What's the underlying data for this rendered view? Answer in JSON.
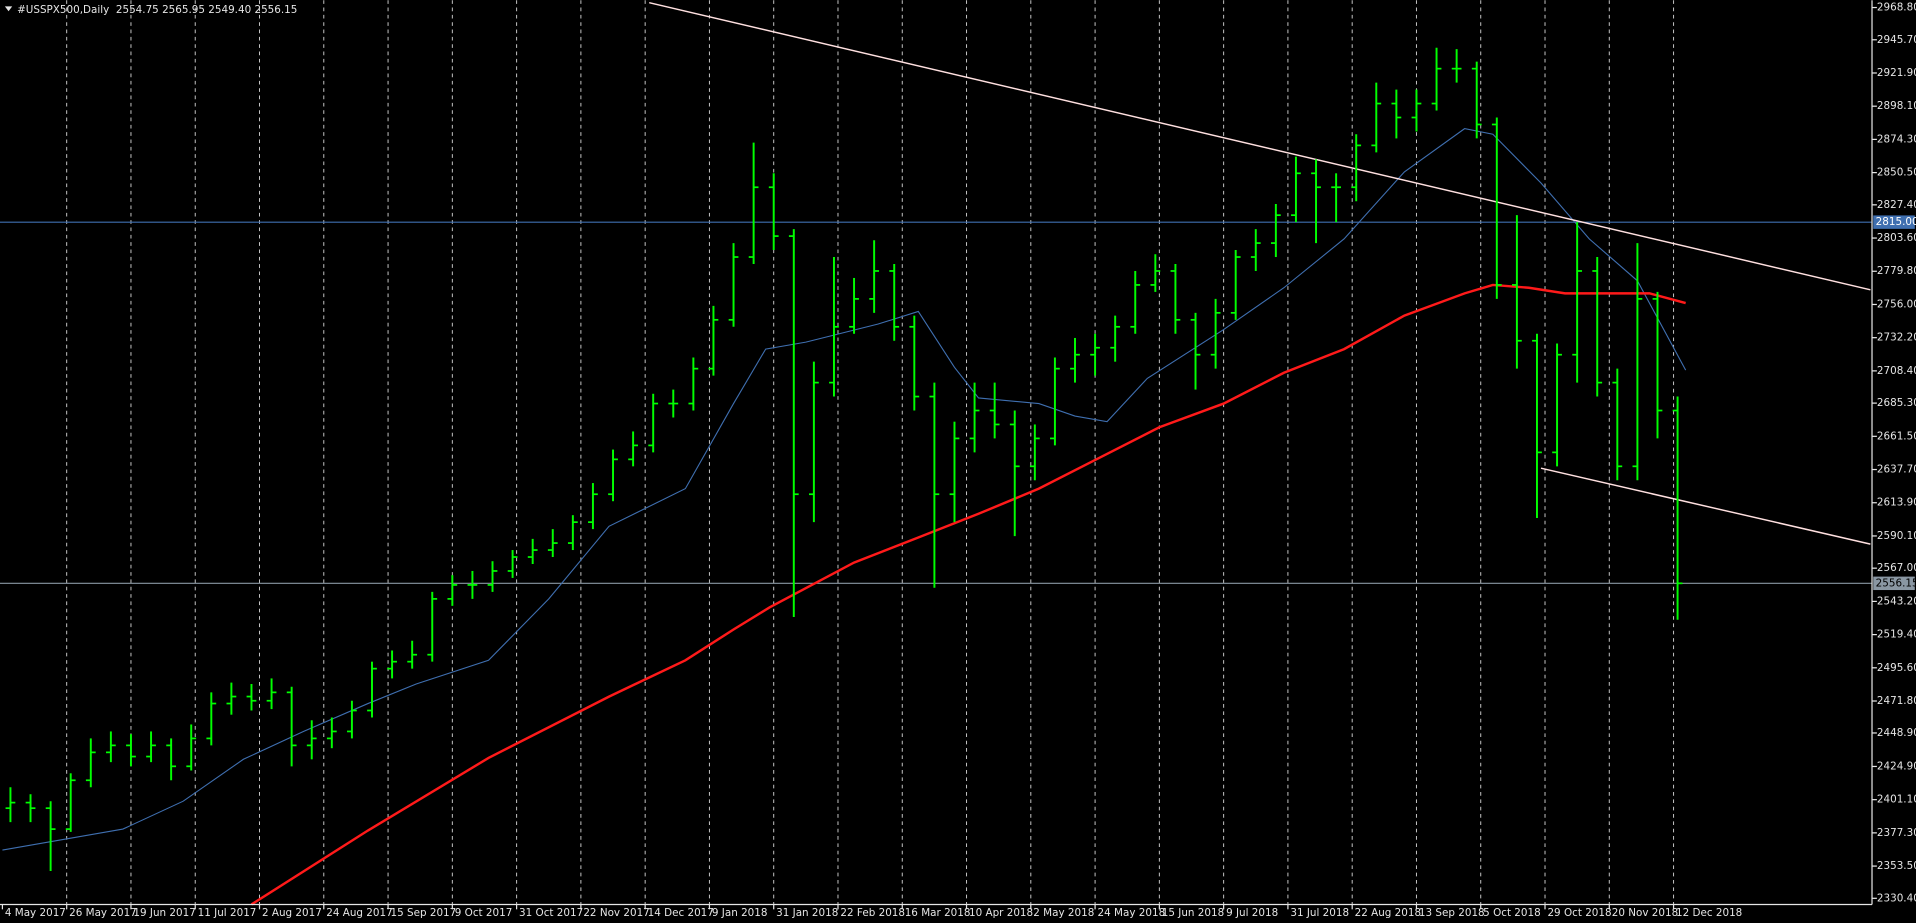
{
  "chart_data": {
    "type": "ohlc",
    "title": "#USSPX500,Daily  2554.75 2565.95 2549.40 2556.15",
    "color": "#00ff00",
    "x": [
      2,
      7,
      12,
      17,
      22,
      27,
      32,
      37,
      42,
      47,
      52,
      57,
      62,
      67,
      72,
      77,
      82,
      87,
      92,
      97,
      102,
      107,
      112,
      117,
      122,
      127,
      132,
      137,
      142,
      147,
      152,
      157,
      162,
      167,
      172,
      177,
      182,
      187,
      192,
      197,
      202,
      207,
      212,
      217,
      222,
      227,
      232,
      237,
      242,
      247,
      252,
      257,
      262,
      267,
      272,
      277,
      282,
      287,
      292,
      297,
      302,
      307,
      312,
      317,
      322,
      327,
      332,
      337,
      342,
      347,
      352,
      357,
      362,
      367,
      372,
      377,
      382,
      387,
      392,
      397,
      402,
      407,
      412,
      417
    ],
    "open": [
      2395,
      2399,
      2395,
      2380,
      2415,
      2435,
      2440,
      2432,
      2440,
      2425,
      2445,
      2470,
      2475,
      2472,
      2478,
      2440,
      2445,
      2450,
      2465,
      2495,
      2500,
      2505,
      2545,
      2555,
      2555,
      2565,
      2575,
      2580,
      2585,
      2600,
      2620,
      2645,
      2655,
      2685,
      2685,
      2710,
      2745,
      2790,
      2840,
      2805,
      2620,
      2700,
      2740,
      2760,
      2780,
      2740,
      2690,
      2620,
      2660,
      2680,
      2670,
      2640,
      2660,
      2710,
      2720,
      2725,
      2740,
      2770,
      2780,
      2745,
      2720,
      2750,
      2790,
      2800,
      2820,
      2850,
      2840,
      2840,
      2870,
      2900,
      2890,
      2900,
      2925,
      2925,
      2885,
      2770,
      2730,
      2650,
      2720,
      2780,
      2700,
      2640,
      2760,
      2680
    ],
    "high": [
      2410,
      2405,
      2400,
      2420,
      2445,
      2450,
      2448,
      2450,
      2445,
      2455,
      2478,
      2485,
      2484,
      2488,
      2482,
      2458,
      2460,
      2472,
      2500,
      2508,
      2515,
      2550,
      2562,
      2565,
      2572,
      2580,
      2588,
      2595,
      2605,
      2628,
      2652,
      2665,
      2692,
      2695,
      2718,
      2755,
      2800,
      2872,
      2850,
      2810,
      2715,
      2790,
      2775,
      2802,
      2785,
      2748,
      2700,
      2672,
      2700,
      2700,
      2680,
      2670,
      2718,
      2732,
      2735,
      2748,
      2780,
      2792,
      2785,
      2750,
      2760,
      2795,
      2810,
      2828,
      2862,
      2860,
      2850,
      2878,
      2915,
      2910,
      2910,
      2940,
      2939,
      2930,
      2890,
      2820,
      2735,
      2728,
      2815,
      2790,
      2710,
      2800,
      2765,
      2690
    ],
    "low": [
      2385,
      2385,
      2350,
      2378,
      2410,
      2428,
      2425,
      2428,
      2415,
      2422,
      2440,
      2462,
      2465,
      2466,
      2425,
      2430,
      2438,
      2445,
      2460,
      2488,
      2495,
      2500,
      2540,
      2545,
      2550,
      2560,
      2570,
      2575,
      2580,
      2595,
      2615,
      2640,
      2650,
      2675,
      2680,
      2705,
      2740,
      2785,
      2795,
      2532,
      2600,
      2690,
      2735,
      2750,
      2730,
      2680,
      2553,
      2600,
      2650,
      2660,
      2590,
      2630,
      2655,
      2700,
      2705,
      2715,
      2735,
      2765,
      2735,
      2695,
      2710,
      2745,
      2780,
      2790,
      2815,
      2800,
      2815,
      2830,
      2865,
      2875,
      2880,
      2895,
      2915,
      2875,
      2760,
      2710,
      2603,
      2640,
      2700,
      2690,
      2630,
      2630,
      2660,
      2530
    ],
    "close": [
      2399,
      2395,
      2380,
      2415,
      2435,
      2440,
      2432,
      2440,
      2425,
      2445,
      2470,
      2475,
      2472,
      2478,
      2440,
      2445,
      2450,
      2465,
      2495,
      2500,
      2505,
      2545,
      2555,
      2555,
      2565,
      2575,
      2580,
      2585,
      2600,
      2620,
      2645,
      2655,
      2685,
      2685,
      2710,
      2745,
      2790,
      2840,
      2805,
      2620,
      2700,
      2740,
      2760,
      2780,
      2740,
      2690,
      2620,
      2660,
      2680,
      2670,
      2640,
      2660,
      2710,
      2720,
      2725,
      2740,
      2770,
      2780,
      2745,
      2720,
      2750,
      2790,
      2800,
      2820,
      2850,
      2840,
      2840,
      2870,
      2900,
      2890,
      2900,
      2925,
      2925,
      2885,
      2770,
      2730,
      2650,
      2720,
      2780,
      2700,
      2640,
      2760,
      2680,
      2556.15
    ],
    "overlays": [
      {
        "color": "#3f6fb0",
        "x": [
          0,
          30,
          45,
          60,
          75,
          91,
          103,
          121,
          136,
          151,
          170,
          182,
          190,
          200,
          218,
          228,
          237,
          243,
          258,
          267,
          275,
          285,
          304,
          319,
          334,
          349,
          364,
          371,
          383,
          395,
          407,
          419
        ],
        "values": [
          2365,
          2380,
          2400,
          2430,
          2450,
          2470,
          2484,
          2501,
          2545,
          2597,
          2624,
          2685,
          2724,
          2729,
          2742,
          2751,
          2711,
          2689,
          2685,
          2676,
          2672,
          2703,
          2738,
          2768,
          2803,
          2851,
          2882,
          2878,
          2843,
          2803,
          2773,
          2709
        ]
      },
      {
        "color": "#ff1a1a",
        "x": [
          62,
          91,
          121,
          151,
          170,
          182,
          191,
          212,
          228,
          243,
          258,
          273,
          288,
          304,
          319,
          334,
          349,
          364,
          371,
          380,
          389,
          401,
          410,
          419
        ],
        "values": [
          2326,
          2379,
          2431,
          2475,
          2501,
          2523,
          2539,
          2571,
          2589,
          2606,
          2624,
          2646,
          2668,
          2685,
          2707,
          2724,
          2748,
          2764,
          2770,
          2768,
          2764,
          2764,
          2764,
          2757
        ]
      }
    ],
    "trendlines": [
      {
        "color": "#ffe0e0",
        "x": [
          161,
          465
        ],
        "values": [
          2972.3,
          2766.5
        ]
      },
      {
        "color": "#ffe0e0",
        "x": [
          383,
          465
        ],
        "values": [
          2638.6,
          2584.3
        ]
      }
    ],
    "hlines": [
      {
        "value": 2815,
        "label": "2815.00",
        "color": "#3f6fb0"
      },
      {
        "value": 2556.15,
        "color": "#8a97a3"
      }
    ],
    "xlim": [
      -0.6,
      465.4
    ],
    "ylim": [
      2326.0,
      2974.05
    ],
    "grid": "vertical",
    "xticks": [
      {
        "value": 0,
        "label": "4 May 2017"
      },
      {
        "value": 16,
        "label": "26 May 2017"
      },
      {
        "value": 32,
        "label": "19 Jun 2017"
      },
      {
        "value": 48,
        "label": "11 Jul 2017"
      },
      {
        "value": 64,
        "label": "2 Aug 2017"
      },
      {
        "value": 80,
        "label": "24 Aug 2017"
      },
      {
        "value": 96,
        "label": "15 Sep 2017"
      },
      {
        "value": 112,
        "label": "9 Oct 2017"
      },
      {
        "value": 128,
        "label": "31 Oct 2017"
      },
      {
        "value": 144,
        "label": "22 Nov 2017"
      },
      {
        "value": 160,
        "label": "14 Dec 2017"
      },
      {
        "value": 176,
        "label": "9 Jan 2018"
      },
      {
        "value": 192,
        "label": "31 Jan 2018"
      },
      {
        "value": 208,
        "label": "22 Feb 2018"
      },
      {
        "value": 224,
        "label": "16 Mar 2018"
      },
      {
        "value": 240,
        "label": "10 Apr 2018"
      },
      {
        "value": 256,
        "label": "2 May 2018"
      },
      {
        "value": 272,
        "label": "24 May 2018"
      },
      {
        "value": 288,
        "label": "15 Jun 2018"
      },
      {
        "value": 304,
        "label": "9 Jul 2018"
      },
      {
        "value": 320,
        "label": "31 Jul 2018"
      },
      {
        "value": 336,
        "label": "22 Aug 2018"
      },
      {
        "value": 352,
        "label": "13 Sep 2018"
      },
      {
        "value": 368,
        "label": "5 Oct 2018"
      },
      {
        "value": 384,
        "label": "29 Oct 2018"
      },
      {
        "value": 400,
        "label": "20 Nov 2018"
      },
      {
        "value": 416,
        "label": "12 Dec 2018"
      }
    ],
    "yticks": [
      {
        "value": 2968.8,
        "label": "2968.80"
      },
      {
        "value": 2945.7,
        "label": "2945.70"
      },
      {
        "value": 2921.9,
        "label": "2921.90"
      },
      {
        "value": 2898.1,
        "label": "2898.10"
      },
      {
        "value": 2874.3,
        "label": "2874.30"
      },
      {
        "value": 2850.5,
        "label": "2850.50"
      },
      {
        "value": 2827.4,
        "label": "2827.40"
      },
      {
        "value": 2803.6,
        "label": "2803.60"
      },
      {
        "value": 2779.8,
        "label": "2779.80"
      },
      {
        "value": 2756,
        "label": "2756.00"
      },
      {
        "value": 2732.2,
        "label": "2732.20"
      },
      {
        "value": 2708.4,
        "label": "2708.40"
      },
      {
        "value": 2685.3,
        "label": "2685.30"
      },
      {
        "value": 2661.5,
        "label": "2661.50"
      },
      {
        "value": 2637.7,
        "label": "2637.70"
      },
      {
        "value": 2613.9,
        "label": "2613.90"
      },
      {
        "value": 2590.1,
        "label": "2590.10"
      },
      {
        "value": 2567,
        "label": "2567.00"
      },
      {
        "value": 2543.2,
        "label": "2543.20"
      },
      {
        "value": 2519.4,
        "label": "2519.40"
      },
      {
        "value": 2495.6,
        "label": "2495.60"
      },
      {
        "value": 2471.8,
        "label": "2471.80"
      },
      {
        "value": 2448.9,
        "label": "2448.90"
      },
      {
        "value": 2424.9,
        "label": "2424.90"
      },
      {
        "value": 2401.1,
        "label": "2401.10"
      },
      {
        "value": 2377.3,
        "label": "2377.30"
      },
      {
        "value": 2353.5,
        "label": "2353.50"
      },
      {
        "value": 2330.4,
        "label": "2330.40"
      }
    ]
  }
}
